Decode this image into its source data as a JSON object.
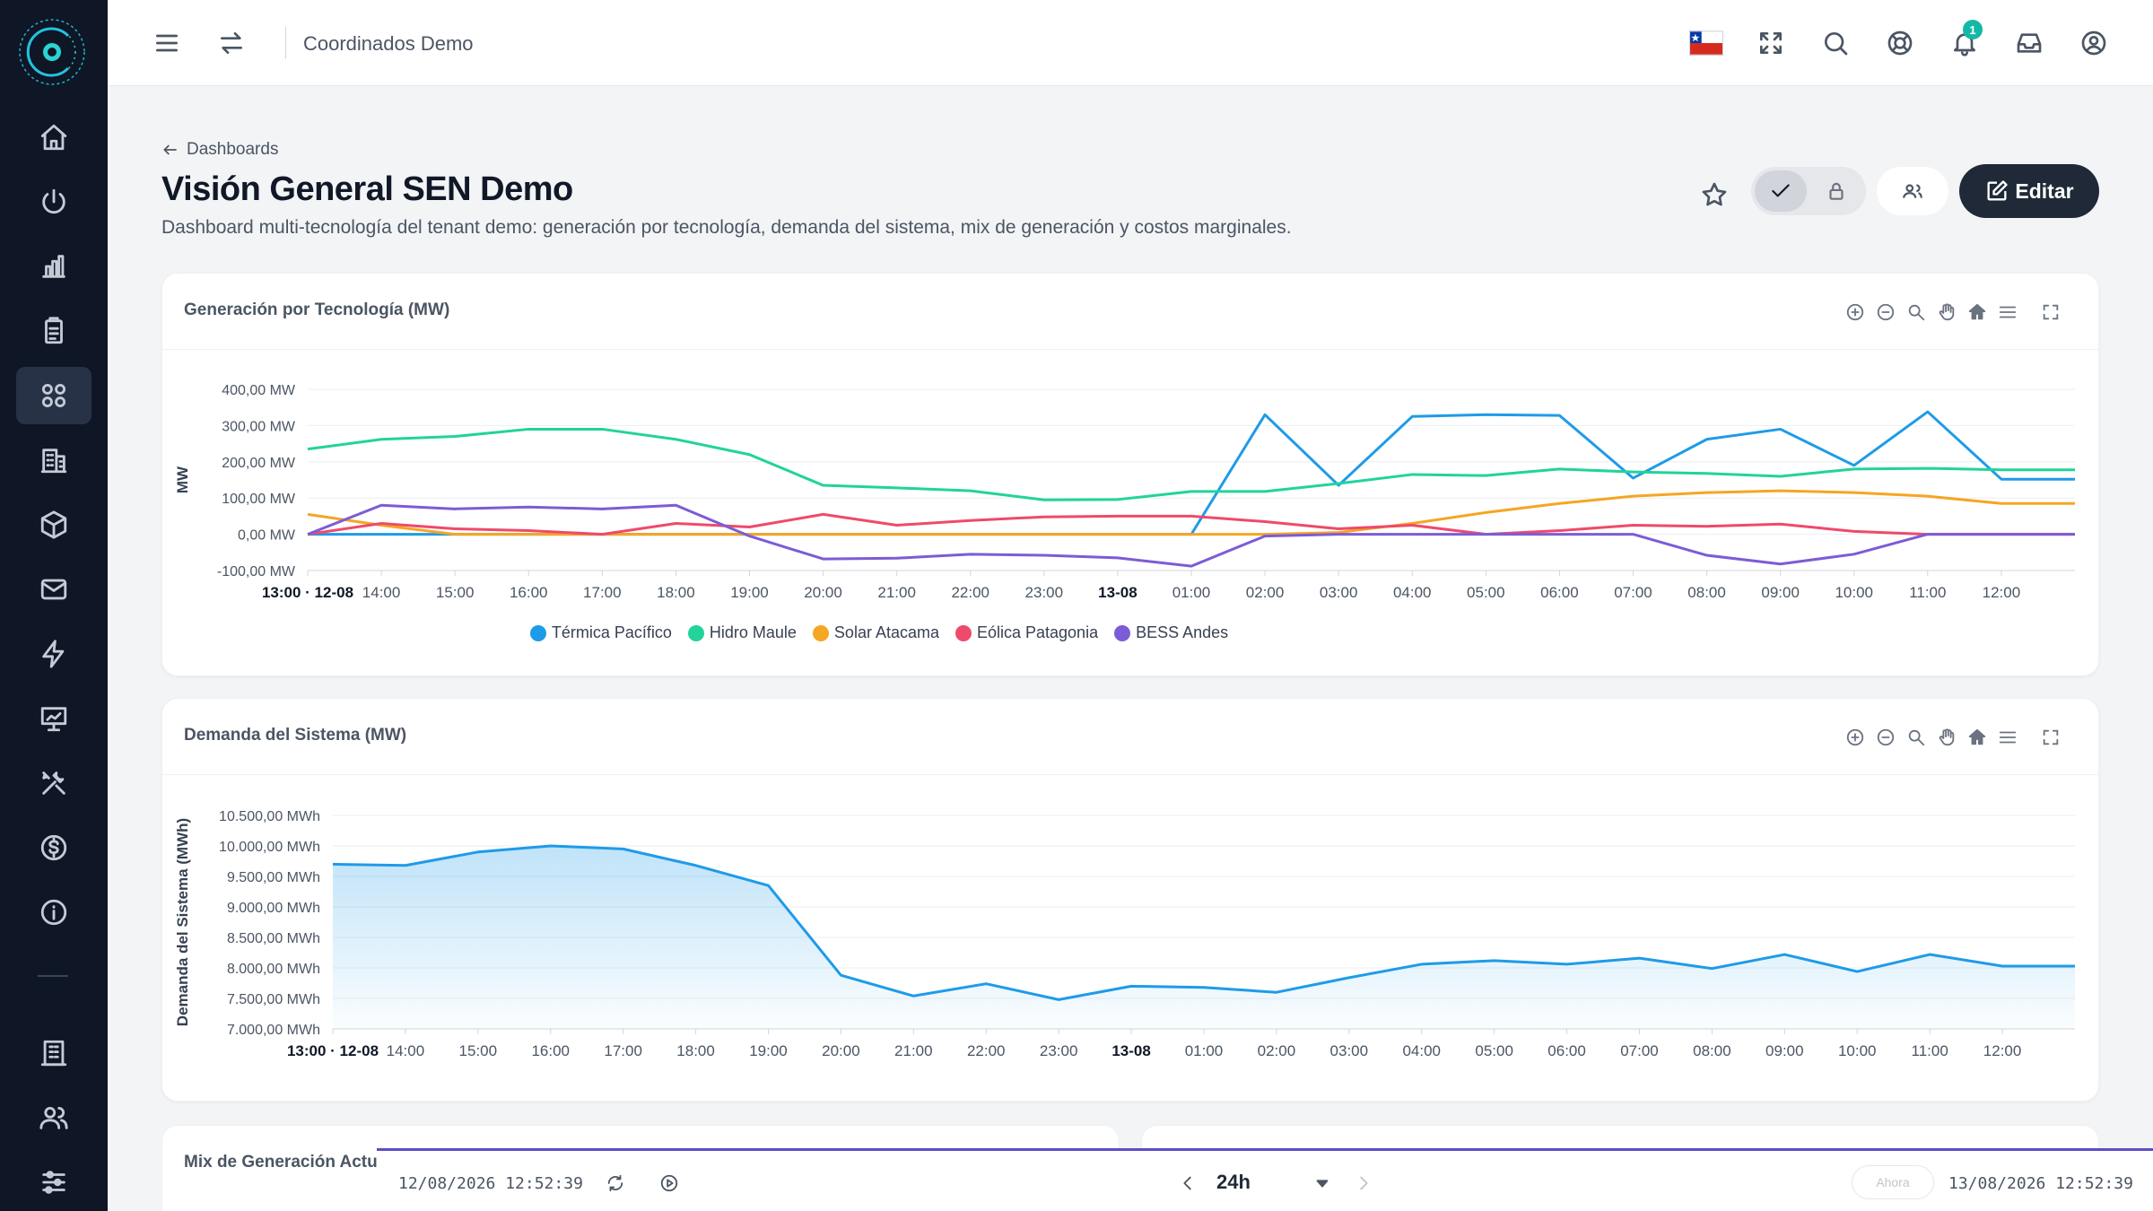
{
  "topbar": {
    "title": "Coordinados Demo",
    "notification_count": "1"
  },
  "header": {
    "breadcrumb": "Dashboards",
    "title": "Visión General SEN Demo",
    "description": "Dashboard multi-tecnología del tenant demo: generación por tecnología, demanda del sistema, mix de generación y costos marginales.",
    "edit_label": "Editar"
  },
  "cards": {
    "generation": {
      "title": "Generación por Tecnología (MW)"
    },
    "demand": {
      "title": "Demanda del Sistema (MW)"
    },
    "mix": {
      "title": "Mix de Generación Actual"
    }
  },
  "timebar": {
    "start": "12/08/2026 12:52:39",
    "range": "24h",
    "now_label": "Ahora",
    "end": "13/08/2026 12:52:39"
  },
  "colors": {
    "termica": "#1e9be8",
    "hidro": "#22d39b",
    "solar": "#f5a623",
    "eolica": "#ef4a6a",
    "bess": "#7c5cd6",
    "demand": "#1e9be8"
  },
  "chart_data": [
    {
      "type": "line",
      "title": "Generación por Tecnología (MW)",
      "ylabel": "MW",
      "ylim": [
        -100,
        400
      ],
      "y_ticks": [
        "-100,00 MW",
        "0,00 MW",
        "100,00 MW",
        "200,00 MW",
        "300,00 MW",
        "400,00 MW"
      ],
      "y_tick_values": [
        -100,
        0,
        100,
        200,
        300,
        400
      ],
      "x_labels": [
        "13:00 · 12-08",
        "14:00",
        "15:00",
        "16:00",
        "17:00",
        "18:00",
        "19:00",
        "20:00",
        "21:00",
        "22:00",
        "23:00",
        "13-08",
        "01:00",
        "02:00",
        "03:00",
        "04:00",
        "05:00",
        "06:00",
        "07:00",
        "08:00",
        "09:00",
        "10:00",
        "11:00",
        "12:00"
      ],
      "legend": "bottom",
      "series": [
        {
          "name": "Térmica Pacífico",
          "color_key": "termica",
          "values": [
            0,
            0,
            0,
            0,
            0,
            0,
            0,
            0,
            0,
            0,
            0,
            0,
            0,
            330,
            135,
            325,
            330,
            328,
            155,
            262,
            290,
            190,
            338,
            152,
            152
          ]
        },
        {
          "name": "Hidro Maule",
          "color_key": "hidro",
          "values": [
            235,
            262,
            270,
            290,
            290,
            262,
            220,
            135,
            128,
            120,
            95,
            96,
            118,
            118,
            140,
            165,
            162,
            180,
            172,
            168,
            160,
            180,
            182,
            178,
            178
          ]
        },
        {
          "name": "Solar Atacama",
          "color_key": "solar",
          "values": [
            55,
            25,
            0,
            0,
            0,
            0,
            0,
            0,
            0,
            0,
            0,
            0,
            0,
            0,
            5,
            30,
            60,
            85,
            105,
            115,
            120,
            115,
            105,
            85,
            85
          ]
        },
        {
          "name": "Eólica Patagonia",
          "color_key": "eolica",
          "values": [
            0,
            30,
            15,
            10,
            0,
            30,
            20,
            55,
            25,
            38,
            48,
            50,
            50,
            35,
            15,
            25,
            0,
            10,
            25,
            22,
            28,
            8,
            0,
            0,
            0
          ]
        },
        {
          "name": "BESS Andes",
          "color_key": "bess",
          "values": [
            0,
            80,
            70,
            75,
            70,
            80,
            -5,
            -68,
            -66,
            -55,
            -58,
            -65,
            -88,
            -5,
            0,
            0,
            0,
            0,
            0,
            -58,
            -82,
            -55,
            0,
            0,
            0
          ]
        }
      ]
    },
    {
      "type": "area",
      "title": "Demanda del Sistema (MW)",
      "ylabel": "Demanda del Sistema (MWh)",
      "ylim": [
        7000,
        10500
      ],
      "y_ticks": [
        "7.000,00 MWh",
        "7.500,00 MWh",
        "8.000,00 MWh",
        "8.500,00 MWh",
        "9.000,00 MWh",
        "9.500,00 MWh",
        "10.000,00 MWh",
        "10.500,00 MWh"
      ],
      "y_tick_values": [
        7000,
        7500,
        8000,
        8500,
        9000,
        9500,
        10000,
        10500
      ],
      "x_labels": [
        "13:00 · 12-08",
        "14:00",
        "15:00",
        "16:00",
        "17:00",
        "18:00",
        "19:00",
        "20:00",
        "21:00",
        "22:00",
        "23:00",
        "13-08",
        "01:00",
        "02:00",
        "03:00",
        "04:00",
        "05:00",
        "06:00",
        "07:00",
        "08:00",
        "09:00",
        "10:00",
        "11:00",
        "12:00"
      ],
      "series": [
        {
          "name": "Demanda",
          "color_key": "demand",
          "values": [
            9700,
            9680,
            9900,
            10000,
            9950,
            9680,
            9350,
            7880,
            7540,
            7740,
            7480,
            7700,
            7680,
            7600,
            7840,
            8060,
            8120,
            8060,
            8160,
            7990,
            8220,
            7940,
            8220,
            8030,
            8030
          ]
        }
      ]
    }
  ]
}
